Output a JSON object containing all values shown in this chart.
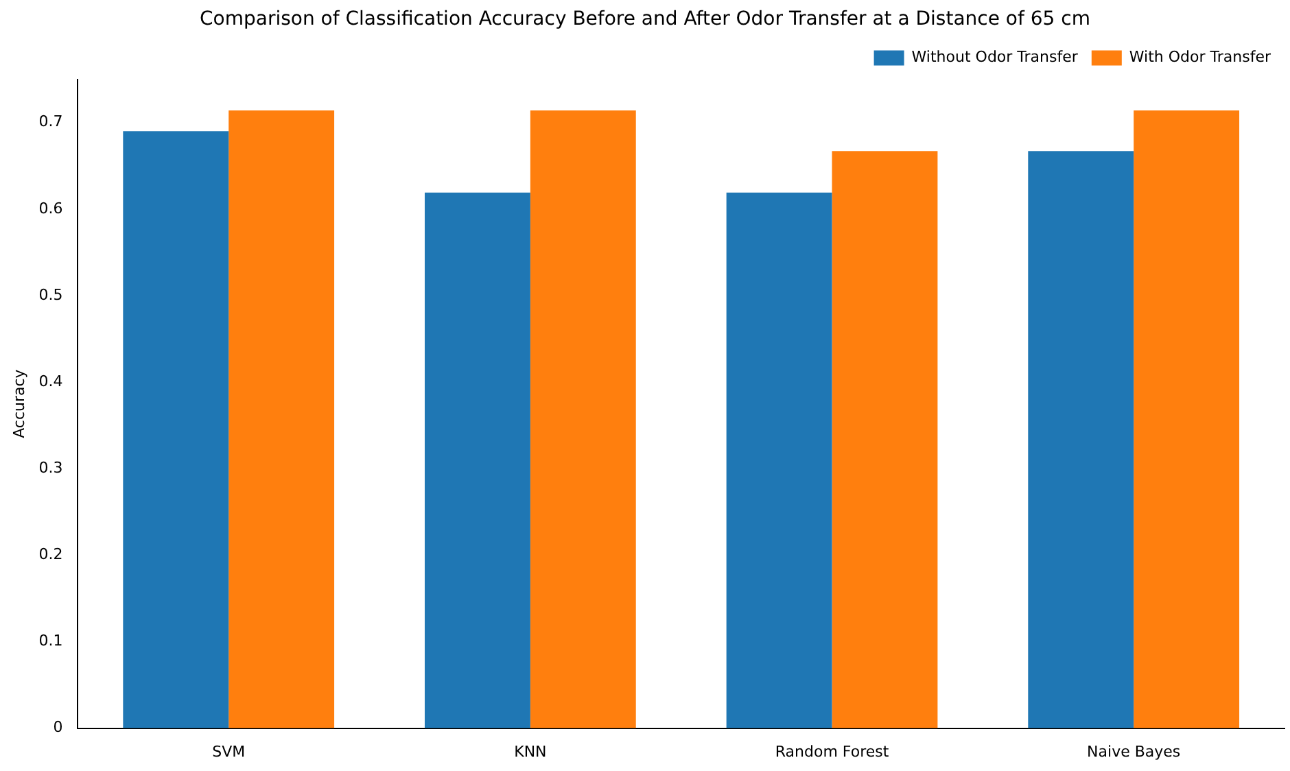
{
  "chart_data": {
    "type": "bar",
    "title": "Comparison of Classification Accuracy Before and After Odor Transfer at a Distance of 65 cm",
    "ylabel": "Accuracy",
    "categories": [
      "SVM",
      "KNN",
      "Random Forest",
      "Naive Bayes"
    ],
    "series": [
      {
        "name": "Without Odor Transfer",
        "color": "#1f77b4",
        "values": [
          0.69,
          0.619,
          0.619,
          0.667
        ]
      },
      {
        "name": "With Odor Transfer",
        "color": "#ff7f0e",
        "values": [
          0.714,
          0.714,
          0.667,
          0.714
        ]
      }
    ],
    "ylim": [
      0,
      0.75
    ],
    "yticks": [
      0,
      0.1,
      0.2,
      0.3,
      0.4,
      0.5,
      0.6,
      0.7
    ],
    "grid": false,
    "legend": "top right"
  }
}
